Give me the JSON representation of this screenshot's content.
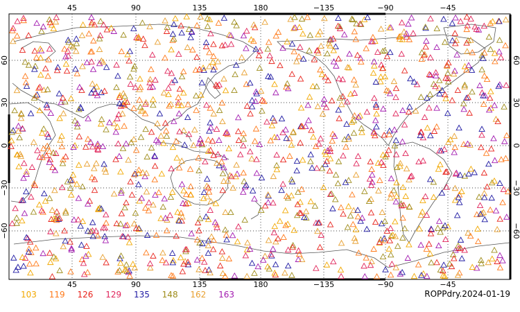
{
  "map": {
    "caption": "ROPPdry.2024-01-19",
    "projection": "equirectangular",
    "center_longitude": 150,
    "marker_shape": "triangle",
    "background": "#ffffff",
    "grid": "dotted",
    "lon_ticks_top": [
      "45",
      "90",
      "135",
      "180",
      "−135",
      "−90",
      "−45"
    ],
    "lon_ticks_bottom": [
      "45",
      "90",
      "135",
      "180",
      "−135",
      "−90",
      "−45"
    ],
    "lat_ticks_left": [
      "60",
      "30",
      "0",
      "−30",
      "−60"
    ],
    "lat_ticks_right": [
      "60",
      "30",
      "0",
      "−30",
      "−60"
    ]
  },
  "legend": {
    "items": [
      {
        "label": "103",
        "color": "#f2a800"
      },
      {
        "label": "119",
        "color": "#ff7a1a"
      },
      {
        "label": "126",
        "color": "#e8231c"
      },
      {
        "label": "129",
        "color": "#e0245a"
      },
      {
        "label": "135",
        "color": "#1f1aa3"
      },
      {
        "label": "148",
        "color": "#9e8c1a"
      },
      {
        "label": "162",
        "color": "#e8a030"
      },
      {
        "label": "163",
        "color": "#a21ab0"
      }
    ]
  }
}
